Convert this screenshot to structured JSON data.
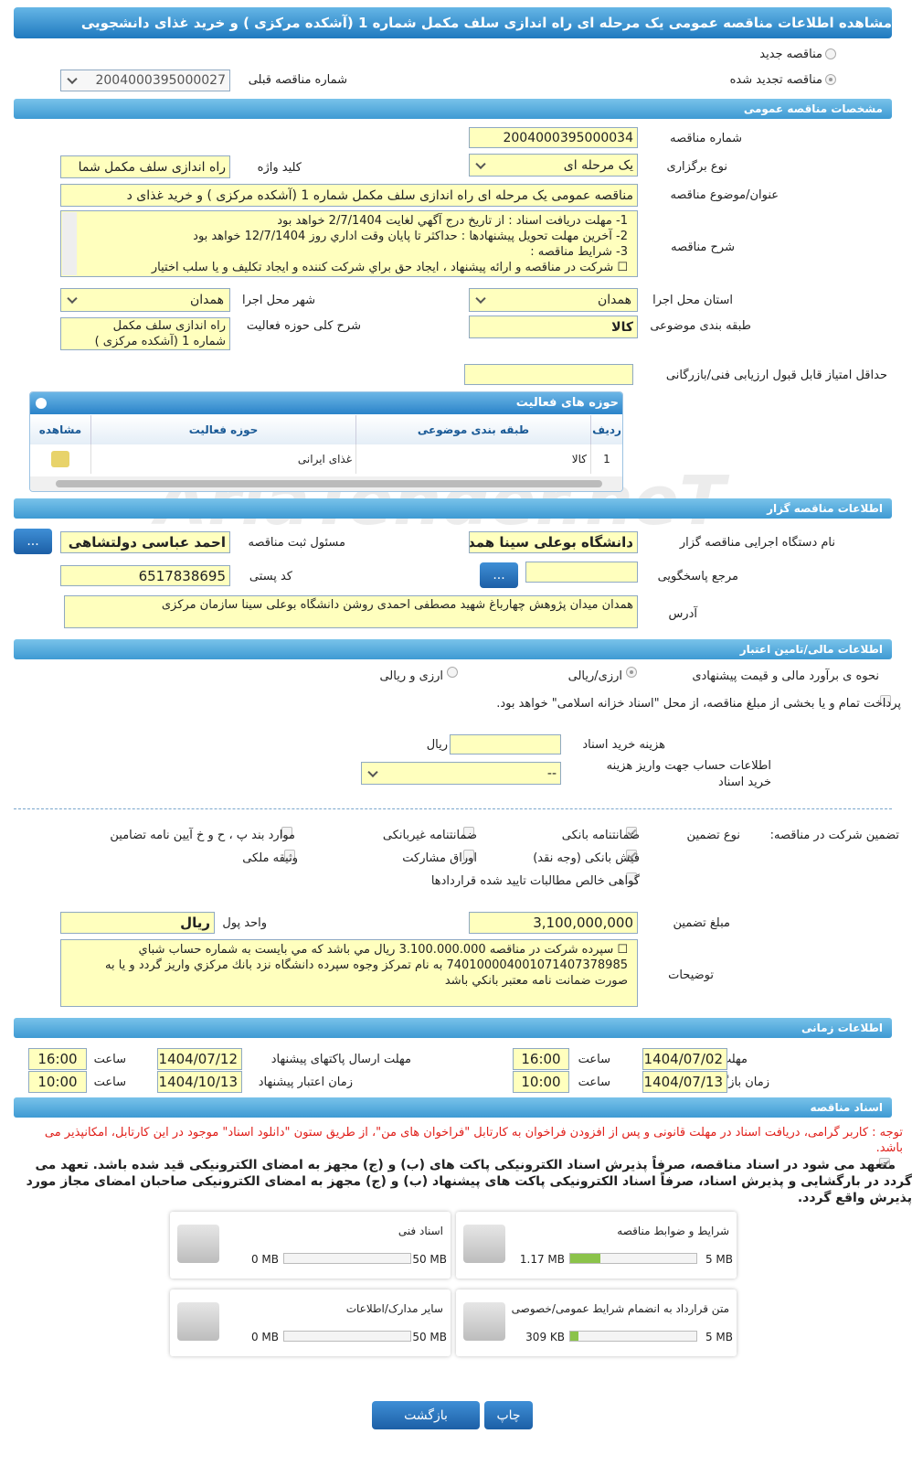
{
  "header": {
    "title": "مشاهده اطلاعات مناقصه عمومی یک مرحله ای راه اندازی سلف مکمل شماره 1 (آشکده مرکزی ) و خرید غذای دانشجویی"
  },
  "watermark": "AriaTender.neT",
  "top": {
    "new_tender": "مناقصه جدید",
    "renewed": "مناقصه تجدید شده",
    "prev_number_label": "شماره مناقصه قبلی",
    "prev_number": "2004000395000027"
  },
  "general": {
    "title": "مشخصات مناقصه عمومی",
    "number_label": "شماره مناقصه",
    "number": "2004000395000034",
    "type_label": "نوع برگزاری",
    "type": "یک مرحله ای",
    "keyword_label": "کلید واژه",
    "keyword": "راه اندازی سلف مکمل شما",
    "subject_label": "عنوان/موضوع مناقصه",
    "subject": "مناقصه عمومی یک مرحله ای راه اندازی سلف مکمل شماره 1 (آشکده مرکزی ) و خرید غذای د",
    "description_label": "شرح مناقصه",
    "description": [
      "1-   مهلت دريافت اسناد : از تاريخ درج آگهي لغايت 2/7/1404 خواهد بود",
      "2-   آخرين مهلت تحويل پيشنهادها : حداكثر تا پايان وقت اداري روز 12/7/1404 خواهد بود",
      "3-   شرايط مناقصه :",
      "☐   شركت در مناقصه و ارائه پيشنهاد ، ايجاد حق براي شركت كننده و ايجاد تكليف و يا سلب اختيار"
    ],
    "province_label": "استان محل اجرا",
    "province": "همدان",
    "city_label": "شهر محل اجرا",
    "city": "همدان",
    "category_label": "طبقه بندی موضوعی",
    "category": "کالا",
    "activity_desc_label": "شرح کلی حوزه فعالیت",
    "activity_desc": "راه اندازی سلف مکمل شماره 1 (آشکده مرکزی )",
    "min_score_label": "حداقل امتیاز قابل قبول ارزیابی فنی/بازرگانی"
  },
  "activities": {
    "title": "حوزه های فعالیت",
    "headers": [
      "ردیف",
      "طبقه بندی موضوعی",
      "حوزه فعالیت",
      "مشاهده"
    ],
    "rows": [
      [
        "1",
        "کالا",
        "غذای ایرانی"
      ]
    ]
  },
  "organizer": {
    "title": "اطلاعات مناقصه گزار",
    "org_label": "نام دستگاه اجرایی مناقصه گزار",
    "org": "دانشگاه بوعلی سینا همدان",
    "registrar_label": "مسئول ثبت مناقصه",
    "registrar": "احمد عباسی دولتشاهی",
    "more_button": "...",
    "reference_label": "مرجع پاسخگویی",
    "postal_label": "کد پستی",
    "postal": "6517838695",
    "address_label": "آدرس",
    "address": "همدان میدان پژوهش چهارباغ شهید مصطفی احمدی روشن دانشگاه بوعلی سینا سازمان مرکزی"
  },
  "financial": {
    "title": "اطلاعات مالی/تامین اعتبار",
    "estimate_label": "نحوه ی برآورد مالی و قیمت پیشنهادی",
    "option_1": "ارزی/ریالی",
    "option_2": "ارزی و ریالی",
    "treasury": "پرداخت تمام و یا بخشی از مبلغ مناقصه، از محل \"اسناد خزانه اسلامی\" خواهد بود.",
    "doc_cost_label": "هزینه خرید اسناد",
    "doc_cost_unit": "ریال",
    "account_label": "اطلاعات حساب جهت واریز هزینه خرید اسناد",
    "account": "--"
  },
  "guarantee": {
    "label": "تضمین شرکت در مناقصه:",
    "type_label": "نوع تضمین",
    "options": [
      "ضمانتنامه بانکی",
      "ضمانتنامه غیربانکی",
      "موارد بند پ ، ح و خ آیین نامه تضامین",
      "فیش بانکی (وجه نقد)",
      "اوراق مشارکت",
      "وثیقه ملکی",
      "گواهی خالص مطالبات تایید شده قراردادها"
    ],
    "amount_label": "مبلغ تضمین",
    "amount": "3,100,000,000",
    "currency_label": "واحد پول",
    "currency": "ریال",
    "notes_label": "توضیحات",
    "notes": "☐   سپرده شركت در مناقصه 3.100.000.000 ريال مي باشد كه مي بايست به شماره حساب شباي 740100004001071407378985 به نام تمركز وجوه سپرده دانشگاه نزد بانك مركزي واريز گردد و يا به صورت ضمانت نامه معتبر بانكي باشد"
  },
  "timing": {
    "title": "اطلاعات زمانی",
    "time_label": "ساعت",
    "doc_deadline_label": "مهلت دریافت اسناد",
    "doc_deadline_date": "1404/07/02",
    "doc_deadline_time": "16:00",
    "submit_label": "مهلت ارسال پاکتهای پیشنهاد",
    "submit_date": "1404/07/12",
    "submit_time": "16:00",
    "opening_label": "زمان بازگشایی پاکت ها",
    "opening_date": "1404/07/13",
    "opening_time": "10:00",
    "validity_label": "زمان اعتبار پیشنهاد",
    "validity_date": "1404/10/13",
    "validity_time": "10:00"
  },
  "documents": {
    "title": "اسناد مناقصه",
    "notice": "توجه : کاربر گرامی، دریافت اسناد در مهلت قانونی و پس از افزودن فراخوان به کارتابل \"فراخوان های من\"، از طریق ستون \"دانلود اسناد\" موجود در این کارتابل، امکانپذیر می باشد.",
    "commitment": "متعهد می شود در اسناد مناقصه، صرفاً پذیرش اسناد الکترونیکی پاکت های (ب) و (ج) مجهز به امضای الکترونیکی قید شده باشد. تعهد می گردد در بارگشایی و پذیرش اسناد، صرفاً اسناد الکترونیکی پاکت های پیشنهاد (ب) و (ج) مجهز به امضای الکترونیکی صاحبان امضای مجاز مورد پذیرش واقع گردد.",
    "files": [
      {
        "name": "شرایط و ضوابط مناقصه",
        "size": "1.17 MB",
        "max": "5 MB"
      },
      {
        "name": "اسناد فنی",
        "size": "0 MB",
        "max": "50 MB"
      },
      {
        "name": "متن قرارداد به انضمام شرایط عمومی/خصوصی",
        "size": "309 KB",
        "max": "5 MB"
      },
      {
        "name": "سایر مدارک/اطلاعات",
        "size": "0 MB",
        "max": "50 MB"
      }
    ]
  },
  "buttons": {
    "print": "چاپ",
    "back": "بازگشت"
  }
}
